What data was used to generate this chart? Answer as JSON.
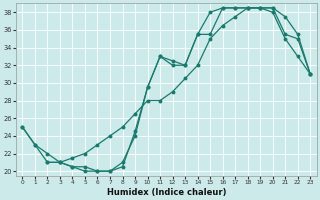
{
  "xlabel": "Humidex (Indice chaleur)",
  "bg_color": "#cdeaea",
  "line_color": "#1a7a6e",
  "grid_color": "#ffffff",
  "xlim": [
    -0.5,
    23.5
  ],
  "ylim": [
    19.5,
    39
  ],
  "xticks": [
    0,
    1,
    2,
    3,
    4,
    5,
    6,
    7,
    8,
    9,
    10,
    11,
    12,
    13,
    14,
    15,
    16,
    17,
    18,
    19,
    20,
    21,
    22,
    23
  ],
  "yticks": [
    20,
    22,
    24,
    26,
    28,
    30,
    32,
    34,
    36,
    38
  ],
  "line1_x": [
    0,
    1,
    2,
    3,
    4,
    5,
    6,
    7,
    8,
    9,
    10,
    11,
    12,
    13,
    14,
    15,
    16,
    17,
    18,
    19,
    20,
    21,
    22,
    23
  ],
  "line1_y": [
    25,
    23,
    21,
    21,
    20.5,
    20.5,
    20,
    20,
    20.5,
    24.5,
    29.5,
    33,
    32.5,
    32,
    35.5,
    35.5,
    38.5,
    38.5,
    38.5,
    38.5,
    38.5,
    35.5,
    35,
    31
  ],
  "line2_x": [
    2,
    3,
    4,
    5,
    6,
    7,
    8,
    9,
    10,
    11,
    12,
    13,
    14,
    15,
    16,
    17,
    18,
    19,
    20,
    21,
    22,
    23
  ],
  "line2_y": [
    21,
    21,
    21.5,
    22,
    23,
    24,
    25,
    26.5,
    28,
    28,
    29,
    30.5,
    32,
    35,
    36.5,
    37.5,
    38.5,
    38.5,
    38.5,
    37.5,
    35.5,
    31
  ],
  "line3_x": [
    0,
    1,
    2,
    3,
    4,
    5,
    6,
    7,
    8,
    9,
    10,
    11,
    12,
    13,
    14,
    15,
    16,
    17,
    18,
    19,
    20,
    21,
    22,
    23
  ],
  "line3_y": [
    25,
    23,
    22,
    21,
    20.5,
    20,
    20,
    20,
    21,
    24,
    29.5,
    33,
    32,
    32,
    35.5,
    38,
    38.5,
    38.5,
    38.5,
    38.5,
    38,
    35,
    33,
    31
  ]
}
